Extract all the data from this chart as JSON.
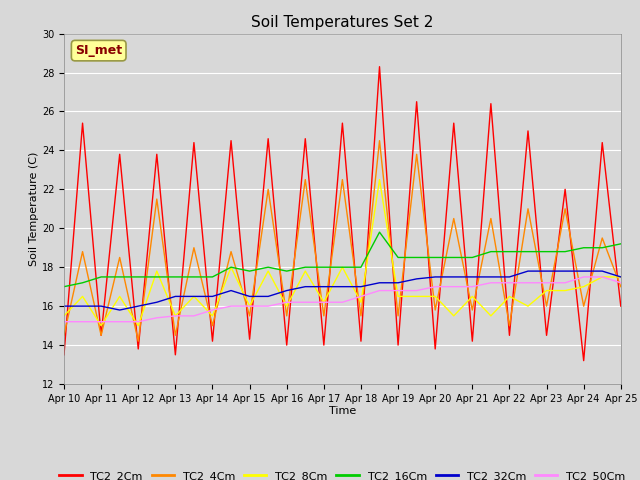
{
  "title": "Soil Temperatures Set 2",
  "xlabel": "Time",
  "ylabel": "Soil Temperature (C)",
  "ylim": [
    12,
    30
  ],
  "xlim": [
    0,
    15
  ],
  "xtick_labels": [
    "Apr 10",
    "Apr 11",
    "Apr 12",
    "Apr 13",
    "Apr 14",
    "Apr 15",
    "Apr 16",
    "Apr 17",
    "Apr 18",
    "Apr 19",
    "Apr 20",
    "Apr 21",
    "Apr 22",
    "Apr 23",
    "Apr 24",
    "Apr 25"
  ],
  "ytick_values": [
    12,
    14,
    16,
    18,
    20,
    22,
    24,
    26,
    28,
    30
  ],
  "annotation": "SI_met",
  "series": {
    "TC2_2Cm": {
      "color": "#FF0000",
      "data_x": [
        0,
        0.5,
        1,
        1.5,
        2,
        2.5,
        3,
        3.5,
        4,
        4.5,
        5,
        5.5,
        6,
        6.5,
        7,
        7.5,
        8,
        8.5,
        9,
        9.5,
        10,
        10.5,
        11,
        11.5,
        12,
        12.5,
        13,
        13.5,
        14,
        14.5,
        15
      ],
      "data_y": [
        13.5,
        25.4,
        14.5,
        23.8,
        13.8,
        23.8,
        13.5,
        24.4,
        14.2,
        24.5,
        14.3,
        24.6,
        14.0,
        24.6,
        14.0,
        25.4,
        14.2,
        28.3,
        14.0,
        26.5,
        13.8,
        25.4,
        14.2,
        26.4,
        14.5,
        25.0,
        14.5,
        22.0,
        13.2,
        24.4,
        16.0
      ]
    },
    "TC2_4Cm": {
      "color": "#FF8800",
      "data_x": [
        0,
        0.5,
        1,
        1.5,
        2,
        2.5,
        3,
        3.5,
        4,
        4.5,
        5,
        5.5,
        6,
        6.5,
        7,
        7.5,
        8,
        8.5,
        9,
        9.5,
        10,
        10.5,
        11,
        11.5,
        12,
        12.5,
        13,
        13.5,
        14,
        14.5,
        15
      ],
      "data_y": [
        14.5,
        18.8,
        14.5,
        18.5,
        14.2,
        21.5,
        14.5,
        19.0,
        15.0,
        18.8,
        15.5,
        22.0,
        15.5,
        22.5,
        15.5,
        22.5,
        15.5,
        24.5,
        15.5,
        23.8,
        15.8,
        20.5,
        15.8,
        20.5,
        15.0,
        21.0,
        16.0,
        21.0,
        16.0,
        19.5,
        17.0
      ]
    },
    "TC2_8Cm": {
      "color": "#FFFF00",
      "data_x": [
        0,
        0.5,
        1,
        1.5,
        2,
        2.5,
        3,
        3.5,
        4,
        4.5,
        5,
        5.5,
        6,
        6.5,
        7,
        7.5,
        8,
        8.5,
        9,
        9.5,
        10,
        10.5,
        11,
        11.5,
        12,
        12.5,
        13,
        13.5,
        14,
        14.5,
        15
      ],
      "data_y": [
        15.5,
        16.5,
        15.0,
        16.5,
        15.0,
        17.8,
        15.5,
        16.5,
        15.5,
        18.0,
        16.0,
        17.8,
        16.0,
        17.8,
        16.2,
        18.0,
        16.2,
        22.5,
        16.5,
        16.5,
        16.5,
        15.5,
        16.5,
        15.5,
        16.5,
        16.0,
        16.8,
        16.8,
        17.0,
        17.5,
        17.5
      ]
    },
    "TC2_16Cm": {
      "color": "#00CC00",
      "data_x": [
        0,
        0.5,
        1,
        1.5,
        2,
        2.5,
        3,
        3.5,
        4,
        4.5,
        5,
        5.5,
        6,
        6.5,
        7,
        7.5,
        8,
        8.5,
        9,
        9.5,
        10,
        10.5,
        11,
        11.5,
        12,
        12.5,
        13,
        13.5,
        14,
        14.5,
        15
      ],
      "data_y": [
        17.0,
        17.2,
        17.5,
        17.5,
        17.5,
        17.5,
        17.5,
        17.5,
        17.5,
        18.0,
        17.8,
        18.0,
        17.8,
        18.0,
        18.0,
        18.0,
        18.0,
        19.8,
        18.5,
        18.5,
        18.5,
        18.5,
        18.5,
        18.8,
        18.8,
        18.8,
        18.8,
        18.8,
        19.0,
        19.0,
        19.2
      ]
    },
    "TC2_32Cm": {
      "color": "#0000CC",
      "data_x": [
        0,
        0.5,
        1,
        1.5,
        2,
        2.5,
        3,
        3.5,
        4,
        4.5,
        5,
        5.5,
        6,
        6.5,
        7,
        7.5,
        8,
        8.5,
        9,
        9.5,
        10,
        10.5,
        11,
        11.5,
        12,
        12.5,
        13,
        13.5,
        14,
        14.5,
        15
      ],
      "data_y": [
        16.0,
        16.0,
        16.0,
        15.8,
        16.0,
        16.2,
        16.5,
        16.5,
        16.5,
        16.8,
        16.5,
        16.5,
        16.8,
        17.0,
        17.0,
        17.0,
        17.0,
        17.2,
        17.2,
        17.4,
        17.5,
        17.5,
        17.5,
        17.5,
        17.5,
        17.8,
        17.8,
        17.8,
        17.8,
        17.8,
        17.5
      ]
    },
    "TC2_50Cm": {
      "color": "#FF88FF",
      "data_x": [
        0,
        0.5,
        1,
        1.5,
        2,
        2.5,
        3,
        3.5,
        4,
        4.5,
        5,
        5.5,
        6,
        6.5,
        7,
        7.5,
        8,
        8.5,
        9,
        9.5,
        10,
        10.5,
        11,
        11.5,
        12,
        12.5,
        13,
        13.5,
        14,
        14.5,
        15
      ],
      "data_y": [
        15.2,
        15.2,
        15.2,
        15.2,
        15.2,
        15.4,
        15.5,
        15.5,
        15.8,
        16.0,
        16.0,
        16.0,
        16.2,
        16.2,
        16.2,
        16.2,
        16.5,
        16.8,
        16.8,
        16.8,
        17.0,
        17.0,
        17.0,
        17.2,
        17.2,
        17.2,
        17.2,
        17.2,
        17.5,
        17.5,
        17.2
      ]
    }
  },
  "background_color": "#D8D8D8",
  "plot_bg_color": "#D8D8D8",
  "grid_color": "#FFFFFF",
  "title_fontsize": 11,
  "axis_label_fontsize": 8,
  "tick_fontsize": 7,
  "legend_fontsize": 8
}
